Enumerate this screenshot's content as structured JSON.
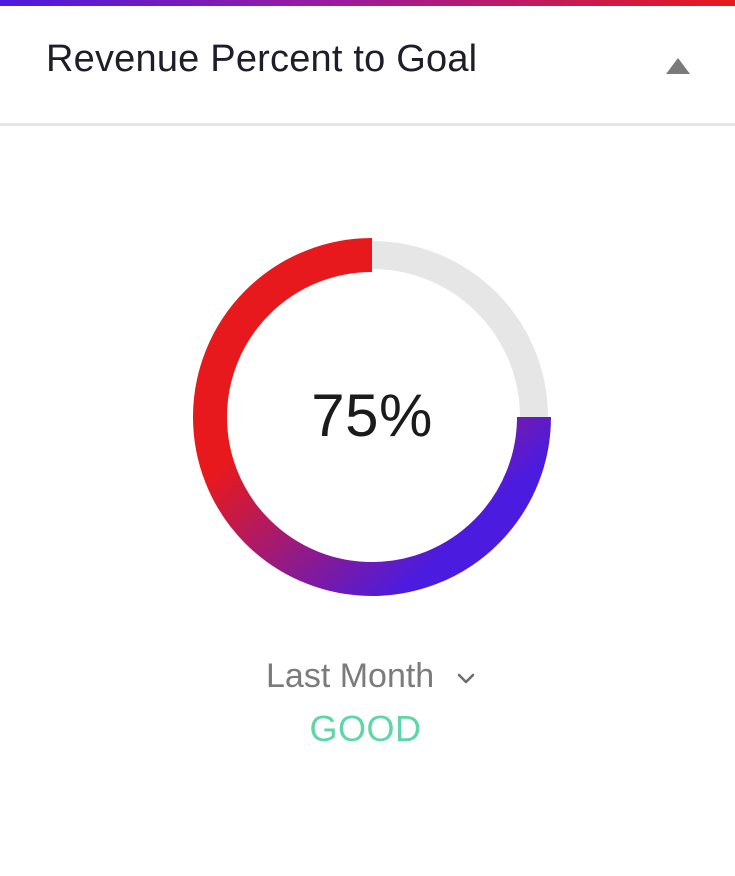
{
  "header": {
    "title": "Revenue Percent to Goal",
    "collapse_icon": "triangle-up-icon"
  },
  "gauge": {
    "value_text": "75%",
    "progress": 0.75,
    "gradient_start": "#e8191c",
    "gradient_end": "#4b1be0",
    "track_color": "#e6e6e6"
  },
  "period": {
    "label": "Last Month",
    "icon": "chevron-down-icon"
  },
  "status": {
    "label": "GOOD",
    "color": "#5fd6a8"
  },
  "colors": {
    "accent_bar_start": "#4b1be0",
    "accent_bar_end": "#e8191c"
  }
}
